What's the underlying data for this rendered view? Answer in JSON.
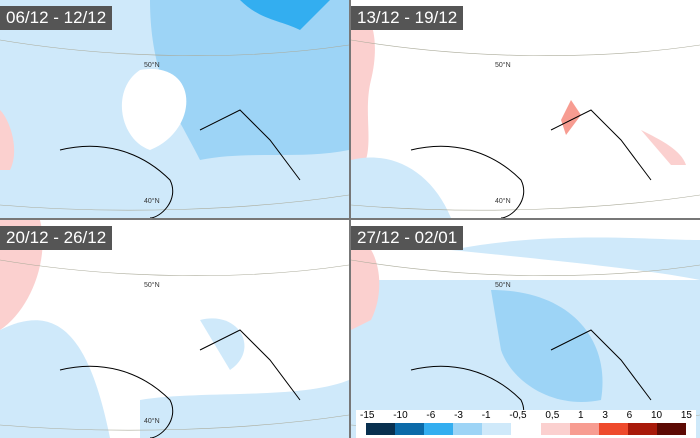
{
  "panels": [
    {
      "title": "06/12 - 12/12",
      "lat_labels": [
        "50°N",
        "40°N"
      ]
    },
    {
      "title": "13/12 - 19/12",
      "lat_labels": [
        "50°N",
        "40°N"
      ]
    },
    {
      "title": "20/12 - 26/12",
      "lat_labels": [
        "50°N",
        "40°N"
      ]
    },
    {
      "title": "27/12 - 02/01",
      "lat_labels": [
        "50°N",
        "40°N"
      ]
    }
  ],
  "legend": {
    "labels": [
      "-15",
      "-10",
      "-6",
      "-3",
      "-1",
      "-0,5",
      "0,5",
      "1",
      "3",
      "6",
      "10",
      "15"
    ],
    "colors": [
      "#08304f",
      "#0b6aa8",
      "#33aef0",
      "#9dd4f6",
      "#cfe9fa",
      "#ffffff",
      "#fbd0cf",
      "#f79c91",
      "#ee4a2c",
      "#a81a0a",
      "#5c0a04"
    ]
  }
}
